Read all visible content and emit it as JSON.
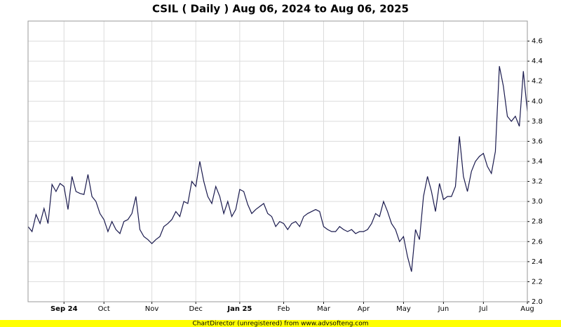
{
  "chart_data": {
    "type": "line",
    "title": "CSIL ( Daily ) Aug 06, 2024 to Aug 06, 2025",
    "footer": "ChartDirector (unregistered) from www.advsofteng.com",
    "categories": [
      null,
      null,
      null,
      null,
      null,
      null,
      null,
      null,
      null,
      "Sep 24",
      null,
      null,
      null,
      null,
      null,
      null,
      null,
      null,
      null,
      "Oct",
      null,
      null,
      null,
      null,
      null,
      null,
      null,
      null,
      null,
      null,
      null,
      "Nov",
      null,
      null,
      null,
      null,
      null,
      null,
      null,
      null,
      null,
      null,
      "Dec",
      null,
      null,
      null,
      null,
      null,
      null,
      null,
      null,
      null,
      null,
      "Jan 25",
      null,
      null,
      null,
      null,
      null,
      null,
      null,
      null,
      null,
      null,
      "Feb",
      null,
      null,
      null,
      null,
      null,
      null,
      null,
      null,
      null,
      "Mar",
      null,
      null,
      null,
      null,
      null,
      null,
      null,
      null,
      null,
      "Apr",
      null,
      null,
      null,
      null,
      null,
      null,
      null,
      null,
      null,
      "May",
      null,
      null,
      null,
      null,
      null,
      null,
      null,
      null,
      null,
      "Jun",
      null,
      null,
      null,
      null,
      null,
      null,
      null,
      null,
      null,
      "Jul",
      null,
      null,
      null,
      null,
      null,
      null,
      null,
      null,
      null,
      null,
      "Aug"
    ],
    "series": [
      {
        "name": "CSIL",
        "color": "#1a1a4e",
        "values": [
          2.75,
          2.7,
          2.87,
          2.78,
          2.93,
          2.78,
          3.17,
          3.1,
          3.18,
          3.15,
          2.92,
          3.25,
          3.1,
          3.08,
          3.07,
          3.27,
          3.05,
          3.0,
          2.88,
          2.82,
          2.7,
          2.8,
          2.72,
          2.68,
          2.8,
          2.82,
          2.88,
          3.05,
          2.72,
          2.65,
          2.62,
          2.58,
          2.62,
          2.65,
          2.75,
          2.78,
          2.82,
          2.9,
          2.85,
          3.0,
          2.98,
          3.2,
          3.15,
          3.4,
          3.2,
          3.05,
          2.98,
          3.15,
          3.05,
          2.88,
          3.0,
          2.85,
          2.92,
          3.12,
          3.1,
          2.97,
          2.88,
          2.92,
          2.95,
          2.98,
          2.88,
          2.85,
          2.75,
          2.8,
          2.78,
          2.72,
          2.78,
          2.8,
          2.75,
          2.85,
          2.88,
          2.9,
          2.92,
          2.9,
          2.75,
          2.72,
          2.7,
          2.7,
          2.75,
          2.72,
          2.7,
          2.72,
          2.68,
          2.7,
          2.7,
          2.72,
          2.78,
          2.88,
          2.85,
          3.0,
          2.9,
          2.78,
          2.72,
          2.6,
          2.65,
          2.45,
          2.3,
          2.72,
          2.62,
          3.05,
          3.25,
          3.1,
          2.9,
          3.18,
          3.02,
          3.05,
          3.05,
          3.15,
          3.65,
          3.25,
          3.1,
          3.3,
          3.4,
          3.45,
          3.48,
          3.35,
          3.28,
          3.5,
          4.35,
          4.15,
          3.85,
          3.8,
          3.85,
          3.75,
          4.3,
          3.9
        ]
      }
    ],
    "ylim": [
      2.0,
      4.8
    ],
    "yticks": [
      {
        "value": 2,
        "label": "2.0"
      },
      2.2,
      2.4,
      2.6,
      2.8,
      {
        "value": 3,
        "label": "3.0"
      },
      3.2,
      3.4,
      3.6,
      3.8,
      {
        "value": 4,
        "label": "4.0"
      },
      4.2,
      4.4,
      4.6
    ],
    "grid": true
  }
}
